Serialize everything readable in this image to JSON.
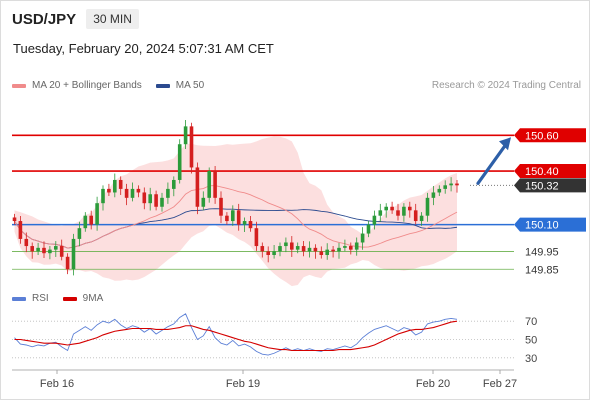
{
  "header": {
    "pair": "USD/JPY",
    "timeframe": "30 MIN"
  },
  "timestamp": "Tuesday, February 20, 2024 5:07:31 AM CET",
  "credit": "Research © 2024 Trading Central",
  "colors": {
    "resistance": "#e00000",
    "support": "#2b6fd6",
    "minor": "#6ab04c",
    "bollinger": "#fbd4d4",
    "ma20": "#f08b8b",
    "ma50": "#2b4a8f",
    "up": "#2b9b3a",
    "down": "#d41f1f",
    "arrow": "#2d5fa8",
    "rsi": "#5b7fd6",
    "rsi_ma": "#d40000",
    "dark_badge": "#333333"
  },
  "chart_data": {
    "type": "candlestick",
    "legend": [
      {
        "name": "MA 20 + Bollinger Bands",
        "color": "#f08b8b"
      },
      {
        "name": "MA 50",
        "color": "#2b4a8f"
      }
    ],
    "x_ticks": [
      "Feb 16",
      "Feb 19",
      "Feb 20",
      "Feb 27"
    ],
    "ylim": [
      149.79,
      150.82
    ],
    "levels": [
      {
        "value": 150.6,
        "label": "150.60",
        "style": "resistance-badge"
      },
      {
        "value": 150.4,
        "label": "150.40",
        "style": "resistance-badge"
      },
      {
        "value": 150.32,
        "label": "150.32",
        "style": "current-price"
      },
      {
        "value": 150.1,
        "label": "150.10",
        "style": "support-badge"
      },
      {
        "value": 149.95,
        "label": "149.95",
        "style": "minor-support"
      },
      {
        "value": 149.85,
        "label": "149.85",
        "style": "minor-support"
      }
    ],
    "arrow": {
      "from": 150.32,
      "to": 150.6,
      "direction": "up"
    },
    "candles_close": [
      150.12,
      150.02,
      149.98,
      149.95,
      149.97,
      149.94,
      149.96,
      149.98,
      149.92,
      149.85,
      150.02,
      150.08,
      150.15,
      150.1,
      150.22,
      150.3,
      150.28,
      150.35,
      150.3,
      150.25,
      150.3,
      150.28,
      150.22,
      150.27,
      150.2,
      150.25,
      150.3,
      150.35,
      150.55,
      150.65,
      150.42,
      150.2,
      150.25,
      150.4,
      150.25,
      150.15,
      150.12,
      150.18,
      150.1,
      150.12,
      150.08,
      149.98,
      149.95,
      149.93,
      149.95,
      149.98,
      150.0,
      149.96,
      149.98,
      149.95,
      149.97,
      149.95,
      149.93,
      149.96,
      149.95,
      149.97,
      149.98,
      149.96,
      150.0,
      150.05,
      150.1,
      150.15,
      150.18,
      150.2,
      150.18,
      150.15,
      150.2,
      150.18,
      150.12,
      150.15,
      150.25,
      150.28,
      150.3,
      150.32,
      150.33,
      150.32
    ],
    "rsi": {
      "levels": [
        70,
        50,
        30
      ],
      "ylim": [
        20,
        80
      ],
      "values": [
        52,
        45,
        44,
        42,
        44,
        43,
        46,
        47,
        42,
        38,
        56,
        60,
        64,
        60,
        66,
        70,
        68,
        72,
        66,
        62,
        65,
        63,
        58,
        62,
        56,
        60,
        64,
        67,
        74,
        78,
        63,
        50,
        54,
        64,
        52,
        46,
        44,
        49,
        43,
        45,
        42,
        37,
        34,
        33,
        35,
        38,
        41,
        38,
        40,
        38,
        40,
        38,
        37,
        40,
        39,
        41,
        43,
        41,
        45,
        52,
        57,
        61,
        63,
        65,
        62,
        59,
        63,
        61,
        55,
        58,
        67,
        69,
        70,
        72,
        73,
        72
      ],
      "ma": [
        50,
        50,
        49,
        48,
        47,
        46,
        46,
        46,
        45,
        44,
        45,
        46,
        48,
        50,
        52,
        55,
        57,
        59,
        60,
        61,
        62,
        62,
        62,
        62,
        61,
        61,
        61,
        62,
        63,
        65,
        65,
        63,
        61,
        60,
        58,
        56,
        54,
        52,
        50,
        48,
        47,
        45,
        43,
        41,
        40,
        39,
        39,
        38,
        38,
        38,
        38,
        38,
        38,
        38,
        38,
        39,
        39,
        39,
        40,
        41,
        42,
        44,
        47,
        50,
        53,
        56,
        58,
        60,
        61,
        61,
        62,
        63,
        65,
        67,
        69,
        70
      ]
    },
    "rsi_legend": [
      {
        "name": "RSI",
        "color": "#5b7fd6"
      },
      {
        "name": "9MA",
        "color": "#d40000"
      }
    ]
  }
}
